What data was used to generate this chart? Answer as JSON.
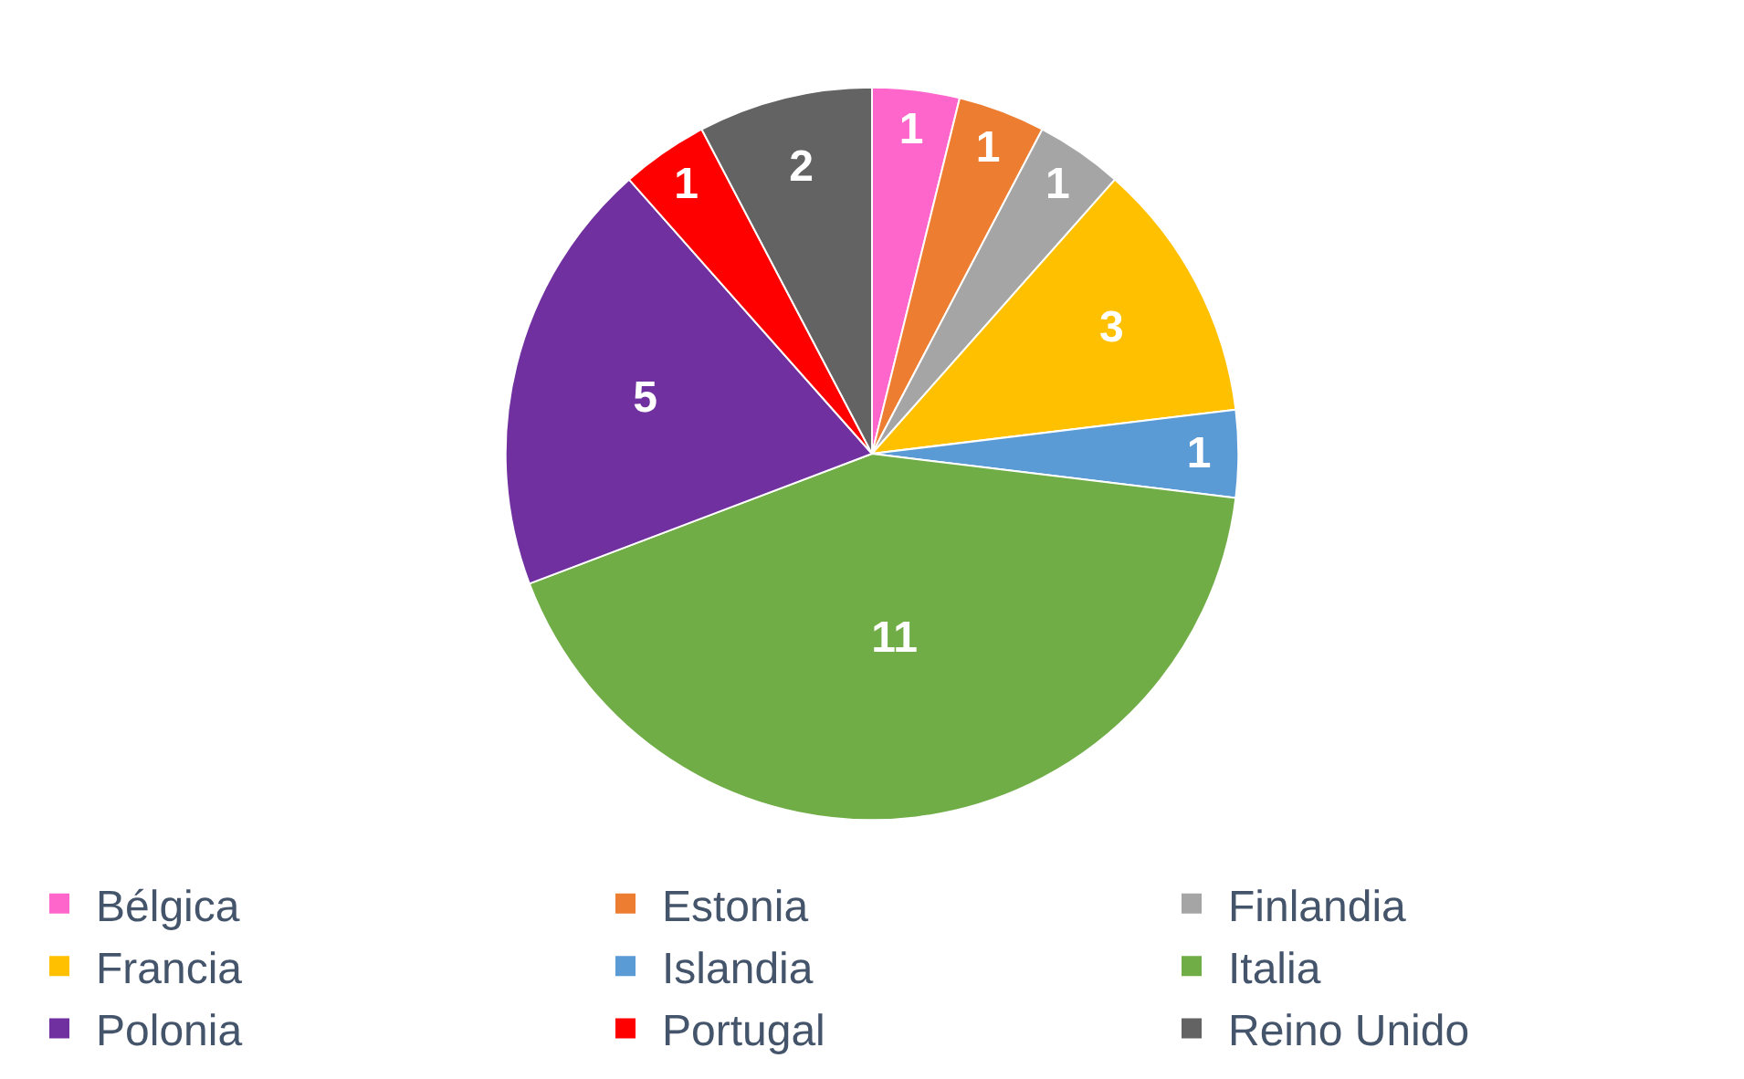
{
  "chart_data": {
    "type": "pie",
    "categories": [
      "Bélgica",
      "Estonia",
      "Finlandia",
      "Francia",
      "Islandia",
      "Italia",
      "Polonia",
      "Portugal",
      "Reino Unido"
    ],
    "values": [
      1,
      1,
      1,
      3,
      1,
      11,
      5,
      1,
      2
    ],
    "colors": [
      "#ff66cc",
      "#ed7d31",
      "#a5a5a5",
      "#ffc000",
      "#5b9bd5",
      "#70ad47",
      "#7030a0",
      "#ff0000",
      "#636363"
    ],
    "data_labels": true,
    "legend": "bottom"
  }
}
